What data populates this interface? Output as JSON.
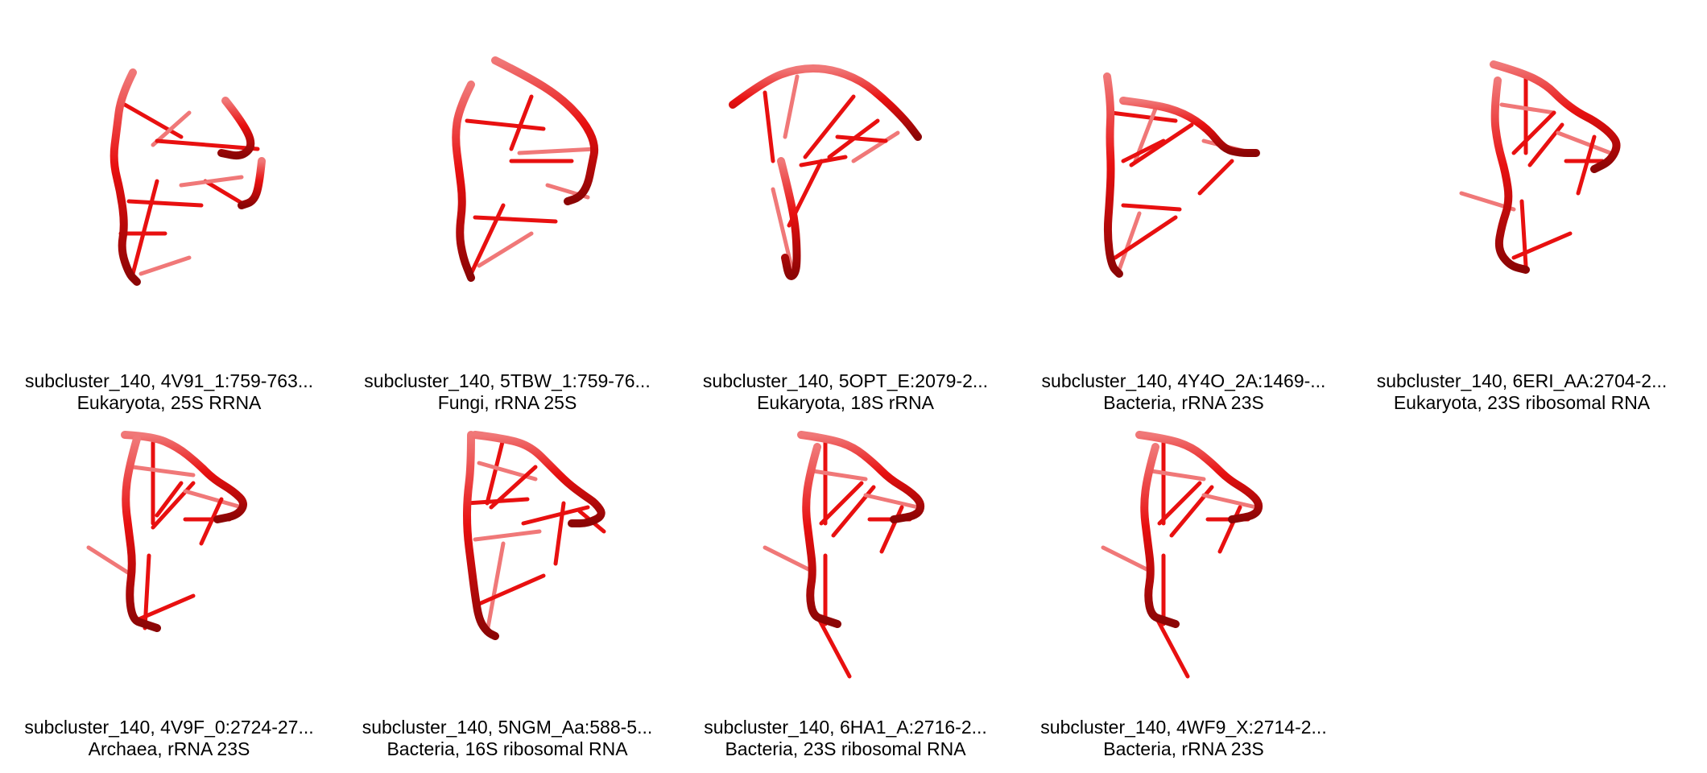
{
  "colors": {
    "backbone": "#e81010",
    "backbone_dark": "#8b0505",
    "backbone_light": "#f07878",
    "text": "#000000",
    "background": "#ffffff"
  },
  "panels": [
    {
      "id": "4V91_1",
      "title": "subcluster_140, 4V91_1:759-763...",
      "subtitle": "Eukaryota, 25S RRNA"
    },
    {
      "id": "5TBW_1",
      "title": "subcluster_140, 5TBW_1:759-76...",
      "subtitle": "Fungi, rRNA 25S"
    },
    {
      "id": "5OPT_E",
      "title": "subcluster_140, 5OPT_E:2079-2...",
      "subtitle": "Eukaryota, 18S rRNA"
    },
    {
      "id": "4Y4O_2A",
      "title": "subcluster_140, 4Y4O_2A:1469-...",
      "subtitle": "Bacteria, rRNA 23S"
    },
    {
      "id": "6ERI_AA",
      "title": "subcluster_140, 6ERI_AA:2704-2...",
      "subtitle": "Eukaryota, 23S ribosomal RNA"
    },
    {
      "id": "4V9F_0",
      "title": "subcluster_140, 4V9F_0:2724-27...",
      "subtitle": "Archaea, rRNA 23S"
    },
    {
      "id": "5NGM_Aa",
      "title": "subcluster_140, 5NGM_Aa:588-5...",
      "subtitle": "Bacteria, 16S ribosomal RNA"
    },
    {
      "id": "6HA1_A",
      "title": "subcluster_140, 6HA1_A:2716-2...",
      "subtitle": "Bacteria, 23S ribosomal RNA"
    },
    {
      "id": "4WF9_X",
      "title": "subcluster_140, 4WF9_X:2714-2...",
      "subtitle": "Bacteria, rRNA 23S"
    }
  ]
}
